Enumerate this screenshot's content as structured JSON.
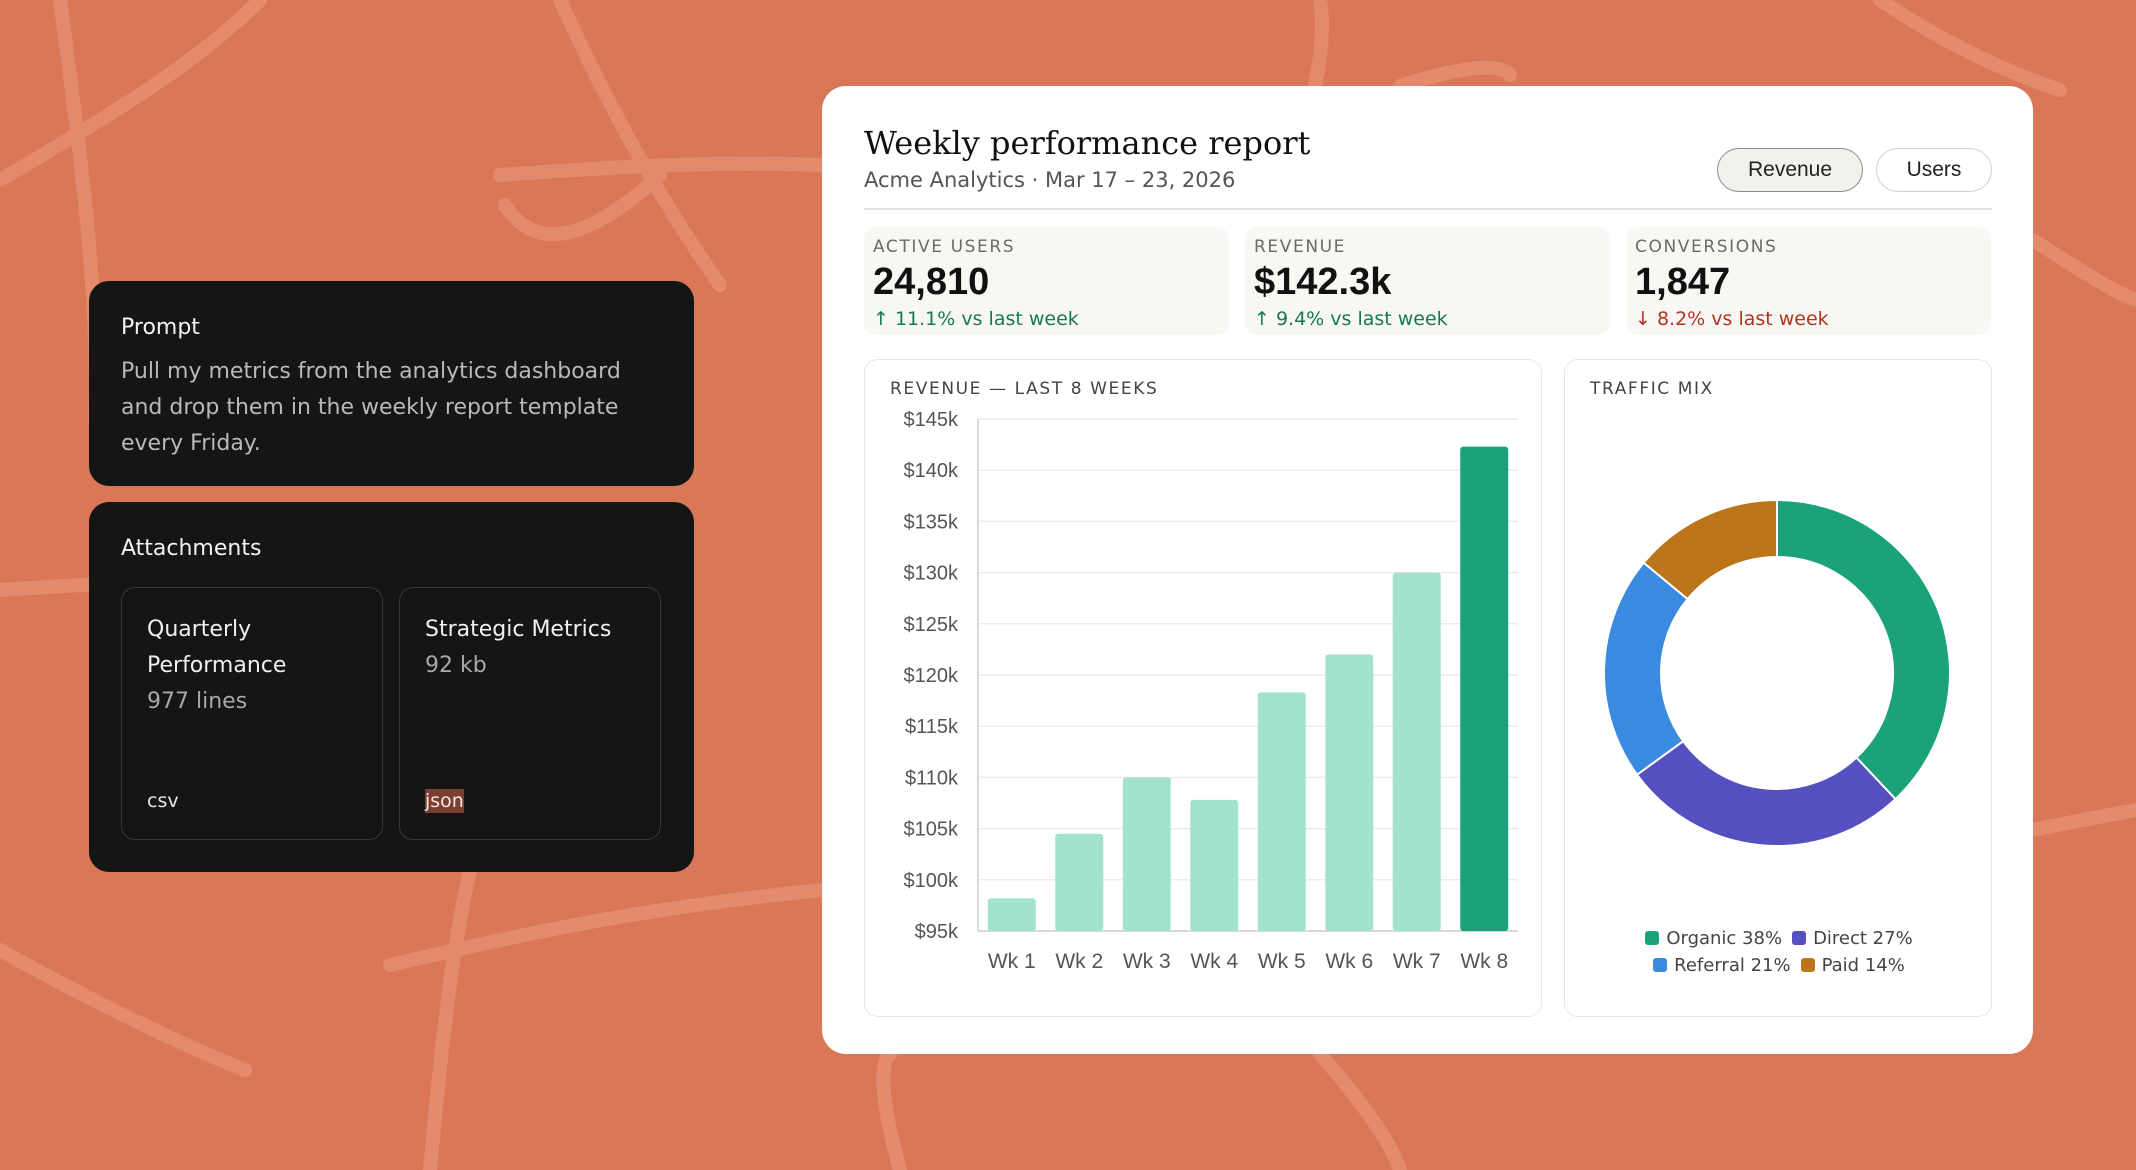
{
  "prompt": {
    "heading": "Prompt",
    "text": "Pull my metrics from the analytics dashboard and drop them in the weekly report template every Friday."
  },
  "attachments": {
    "heading": "Attachments",
    "files": [
      {
        "name": "Quarterly Performance",
        "meta": "977 lines",
        "type": "csv"
      },
      {
        "name": "Strategic Metrics",
        "meta": "92 kb",
        "type": "json"
      }
    ]
  },
  "report": {
    "title": "Weekly performance report",
    "subtitle": "Acme Analytics · Mar 17 – 23, 2026",
    "toggles": [
      "Revenue",
      "Users"
    ],
    "active_toggle": "Revenue",
    "kpis": [
      {
        "label": "ACTIVE USERS",
        "value": "24,810",
        "delta": "↑ 11.1% vs last week",
        "trend": "up"
      },
      {
        "label": "REVENUE",
        "value": "$142.3k",
        "delta": "↑ 9.4% vs last week",
        "trend": "up"
      },
      {
        "label": "CONVERSIONS",
        "value": "1,847",
        "delta": "↓ 8.2% vs last week",
        "trend": "down"
      }
    ],
    "revenue_panel_title": "REVENUE — LAST 8 WEEKS",
    "traffic_panel_title": "TRAFFIC MIX"
  },
  "colors": {
    "background": "#D97757",
    "bar_light": "#A3E2CB",
    "bar_highlight": "#1BA27A",
    "up": "#167a4c",
    "down": "#b3331e"
  },
  "chart_data": [
    {
      "type": "bar",
      "title": "REVENUE — LAST 8 WEEKS",
      "categories": [
        "Wk 1",
        "Wk 2",
        "Wk 3",
        "Wk 4",
        "Wk 5",
        "Wk 6",
        "Wk 7",
        "Wk 8"
      ],
      "values": [
        98.2,
        104.5,
        110.0,
        107.8,
        118.3,
        122.0,
        130.0,
        142.3
      ],
      "unit": "$k",
      "ylim": [
        95,
        145
      ],
      "yticks": [
        "$95k",
        "$100k",
        "$105k",
        "$110k",
        "$115k",
        "$120k",
        "$125k",
        "$130k",
        "$135k",
        "$140k",
        "$145k"
      ],
      "highlight_index": 7,
      "grid": true
    },
    {
      "type": "pie",
      "style": "donut",
      "title": "TRAFFIC MIX",
      "series": [
        {
          "name": "Organic",
          "value": 38,
          "label": "Organic 38%",
          "color": "#1BA27A"
        },
        {
          "name": "Direct",
          "value": 27,
          "label": "Direct 27%",
          "color": "#564FBF"
        },
        {
          "name": "Referral",
          "value": 21,
          "label": "Referral 21%",
          "color": "#3A8BE0"
        },
        {
          "name": "Paid",
          "value": 14,
          "label": "Paid 14%",
          "color": "#BC7619"
        }
      ],
      "legend_position": "bottom"
    }
  ]
}
